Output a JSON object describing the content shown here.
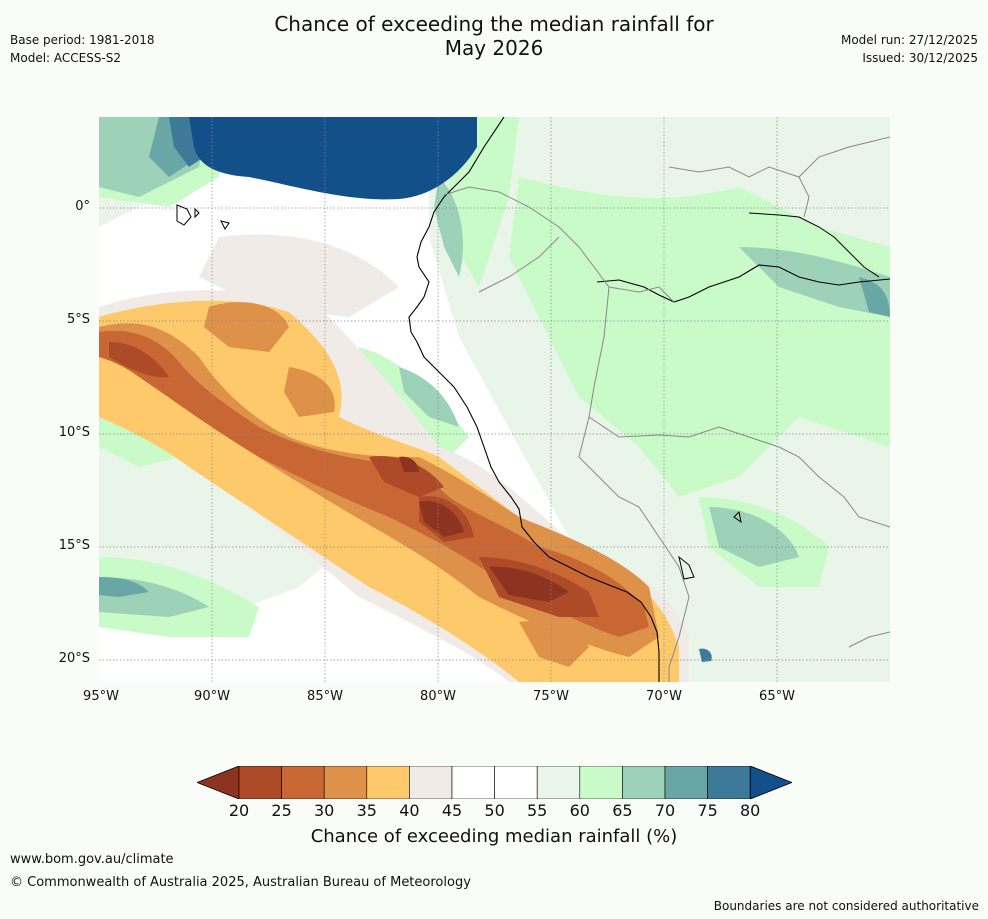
{
  "header": {
    "title_line1": "Chance of exceeding the median rainfall for",
    "title_line2": "May 2026",
    "base_period": "Base period: 1981-2018",
    "model": "Model: ACCESS-S2",
    "model_run": "Model run: 27/12/2025",
    "issued": "Issued: 30/12/2025"
  },
  "map": {
    "lat_labels": [
      "0°",
      "5°S",
      "10°S",
      "15°S",
      "20°S"
    ],
    "lon_labels": [
      "95°W",
      "90°W",
      "85°W",
      "80°W",
      "75°W",
      "70°W",
      "65°W"
    ],
    "extent": {
      "lon": [
        -95,
        -60
      ],
      "lat": [
        -21,
        4
      ]
    }
  },
  "colorbar": {
    "ticks": [
      "20",
      "25",
      "30",
      "35",
      "40",
      "45",
      "50",
      "55",
      "60",
      "65",
      "70",
      "75",
      "80"
    ],
    "colors": [
      "#8e3320",
      "#ad4a28",
      "#c96734",
      "#de9148",
      "#fdc96a",
      "#f0ebe6",
      "#ffffff",
      "#ffffff",
      "#eaf5ea",
      "#c9fbc9",
      "#9dd2b8",
      "#69a6a6",
      "#3d7a9a",
      "#134f88"
    ],
    "label": "Chance of exceeding median rainfall (%)"
  },
  "footer": {
    "url": "www.bom.gov.au/climate",
    "copyright": "© Commonwealth of Australia 2025, Australian Bureau of Meteorology",
    "disclaimer": "Boundaries are not considered authoritative"
  }
}
